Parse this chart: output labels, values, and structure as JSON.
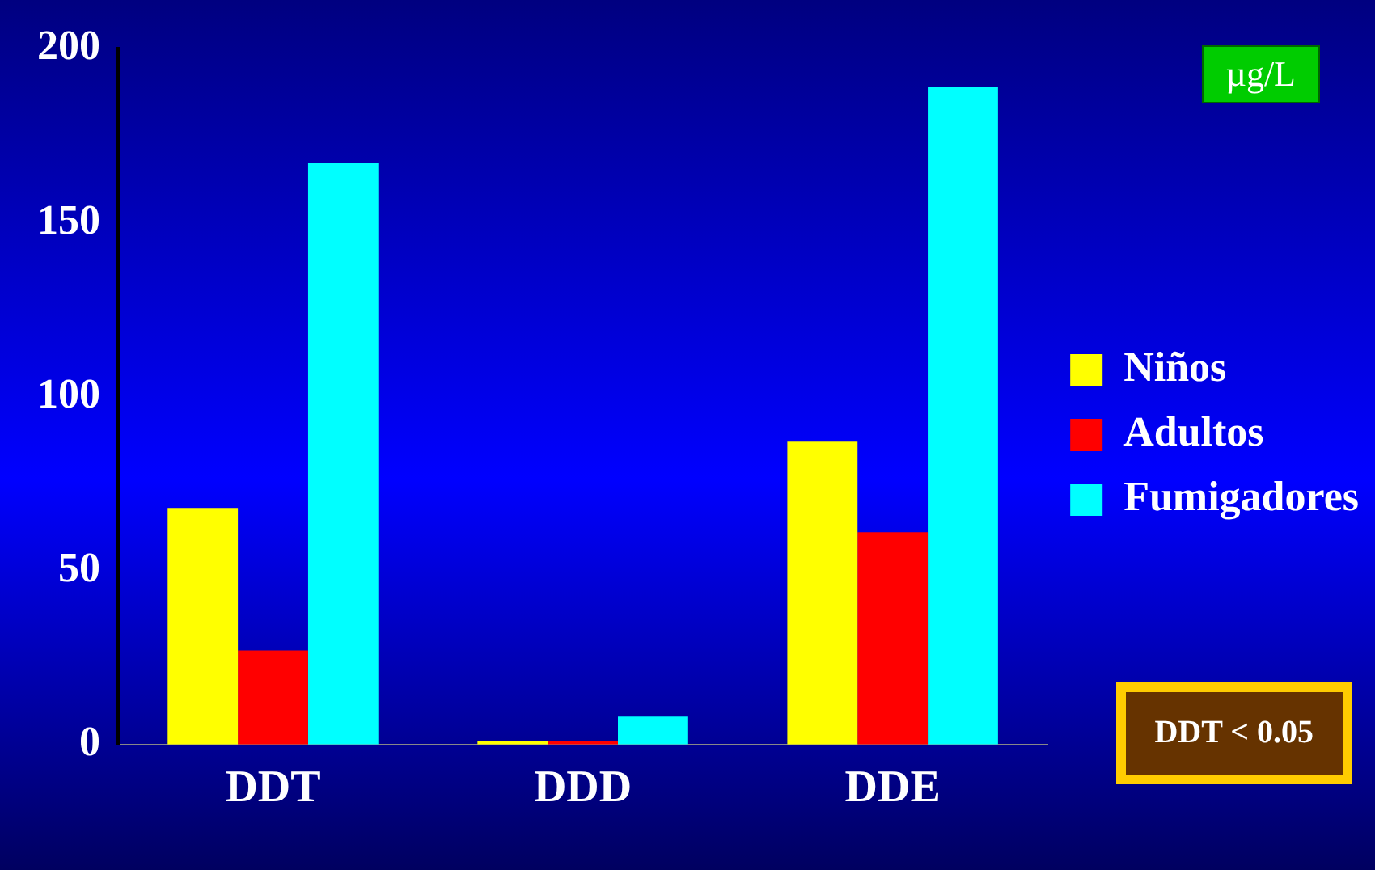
{
  "chart_data": {
    "type": "bar",
    "categories": [
      "DDT",
      "DDD",
      "DDE"
    ],
    "series": [
      {
        "name": "Niños",
        "color": "#ffff00",
        "values": [
          68,
          1,
          87
        ]
      },
      {
        "name": "Adultos",
        "color": "#ff0000",
        "values": [
          27,
          1,
          61
        ]
      },
      {
        "name": "Fumigadores",
        "color": "#00ffff",
        "values": [
          167,
          8,
          189
        ]
      }
    ],
    "ylim": [
      0,
      200
    ],
    "yticks": [
      0,
      50,
      100,
      150,
      200
    ],
    "grid": false,
    "legend": "right",
    "annotations": [
      "µg/L",
      "DDT < 0.05"
    ]
  }
}
